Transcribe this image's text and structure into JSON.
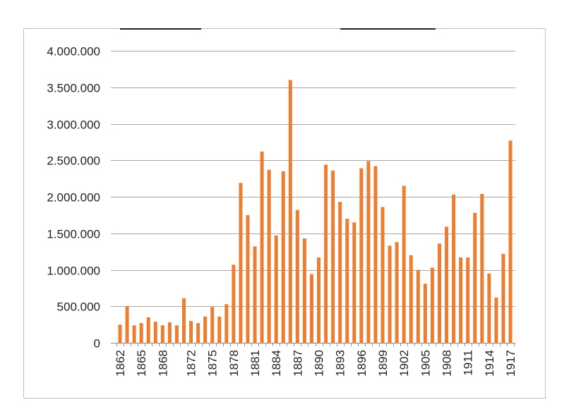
{
  "chart_data": {
    "type": "bar",
    "title": "",
    "xlabel": "",
    "ylabel": "",
    "ylim": [
      0,
      4000000
    ],
    "yticks": [
      0,
      500000,
      1000000,
      1500000,
      2000000,
      2500000,
      3000000,
      3500000,
      4000000
    ],
    "ytick_labels": [
      "0",
      "500.000",
      "1.000.000",
      "1.500.000",
      "2.000.000",
      "2.500.000",
      "3.000.000",
      "3.500.000",
      "4.000.000"
    ],
    "xtick_labels": [
      "1862",
      "1865",
      "1868",
      "1872",
      "1875",
      "1878",
      "1881",
      "1884",
      "1887",
      "1890",
      "1893",
      "1896",
      "1899",
      "1902",
      "1905",
      "1908",
      "1911",
      "1914",
      "1917"
    ],
    "grid": true,
    "legend": "none",
    "bar_color": "#ED7D31",
    "categories": [
      "1862",
      "1863",
      "1864",
      "1865",
      "1866",
      "1867",
      "1868",
      "1869",
      "1870",
      "1871",
      "1872",
      "1873",
      "1874",
      "1875",
      "1876",
      "1877",
      "1878",
      "1879",
      "1880",
      "1881",
      "1882",
      "1883",
      "1884",
      "1885",
      "1886",
      "1887",
      "1888",
      "1889",
      "1890",
      "1891",
      "1892",
      "1893",
      "1894",
      "1895",
      "1896",
      "1897",
      "1898",
      "1899",
      "1900",
      "1901",
      "1902",
      "1903",
      "1904",
      "1905",
      "1906",
      "1907",
      "1908",
      "1909",
      "1910",
      "1911",
      "1912",
      "1913",
      "1914",
      "1915",
      "1916",
      "1917"
    ],
    "values": [
      250000,
      500000,
      240000,
      270000,
      350000,
      290000,
      240000,
      280000,
      240000,
      610000,
      300000,
      270000,
      360000,
      490000,
      360000,
      530000,
      1070000,
      2190000,
      1750000,
      1320000,
      2620000,
      2370000,
      1470000,
      2350000,
      3600000,
      1820000,
      1430000,
      940000,
      1170000,
      2440000,
      2360000,
      1930000,
      1700000,
      1650000,
      2390000,
      2490000,
      2420000,
      1860000,
      1330000,
      1380000,
      2150000,
      1200000,
      1000000,
      810000,
      1030000,
      1360000,
      1590000,
      2030000,
      1170000,
      1170000,
      1780000,
      2040000,
      950000,
      620000,
      1220000,
      2770000
    ]
  }
}
